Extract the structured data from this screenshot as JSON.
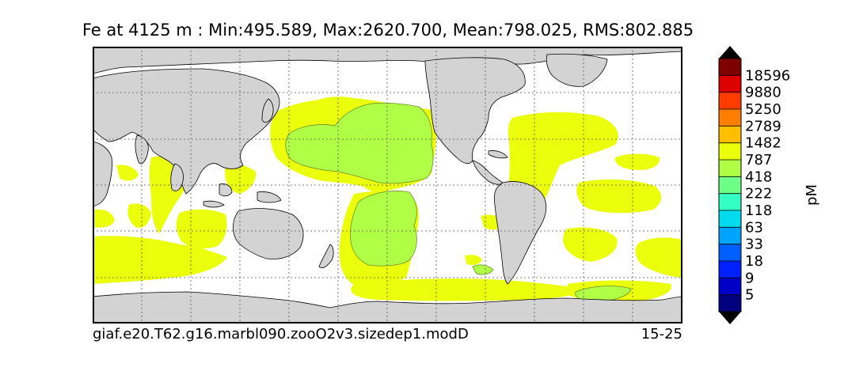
{
  "title": "Fe at 4125 m : Min:495.589, Max:2620.700, Mean:798.025, RMS:802.885",
  "footer": {
    "case_name": "giaf.e20.T62.g16.marbl090.zooO2v3.sizedep1.modD",
    "years": "15-25"
  },
  "colorbar": {
    "unit": "pM",
    "levels": [
      "5",
      "9",
      "18",
      "33",
      "63",
      "118",
      "222",
      "418",
      "787",
      "1482",
      "2789",
      "5250",
      "9880",
      "18596"
    ],
    "colors": [
      "#00007f",
      "#0000c8",
      "#0020ff",
      "#0060ff",
      "#00a4ff",
      "#00dced",
      "#33ffc4",
      "#6eff89",
      "#b0ff46",
      "#ebff0c",
      "#ffbe00",
      "#ff7d00",
      "#ff3c00",
      "#dd0000",
      "#7f0000"
    ],
    "extend": "both"
  },
  "map": {
    "land_color": "#d3d3d3",
    "ocean_color": "#ffffff",
    "grid": true,
    "projection": "cylindrical"
  }
}
